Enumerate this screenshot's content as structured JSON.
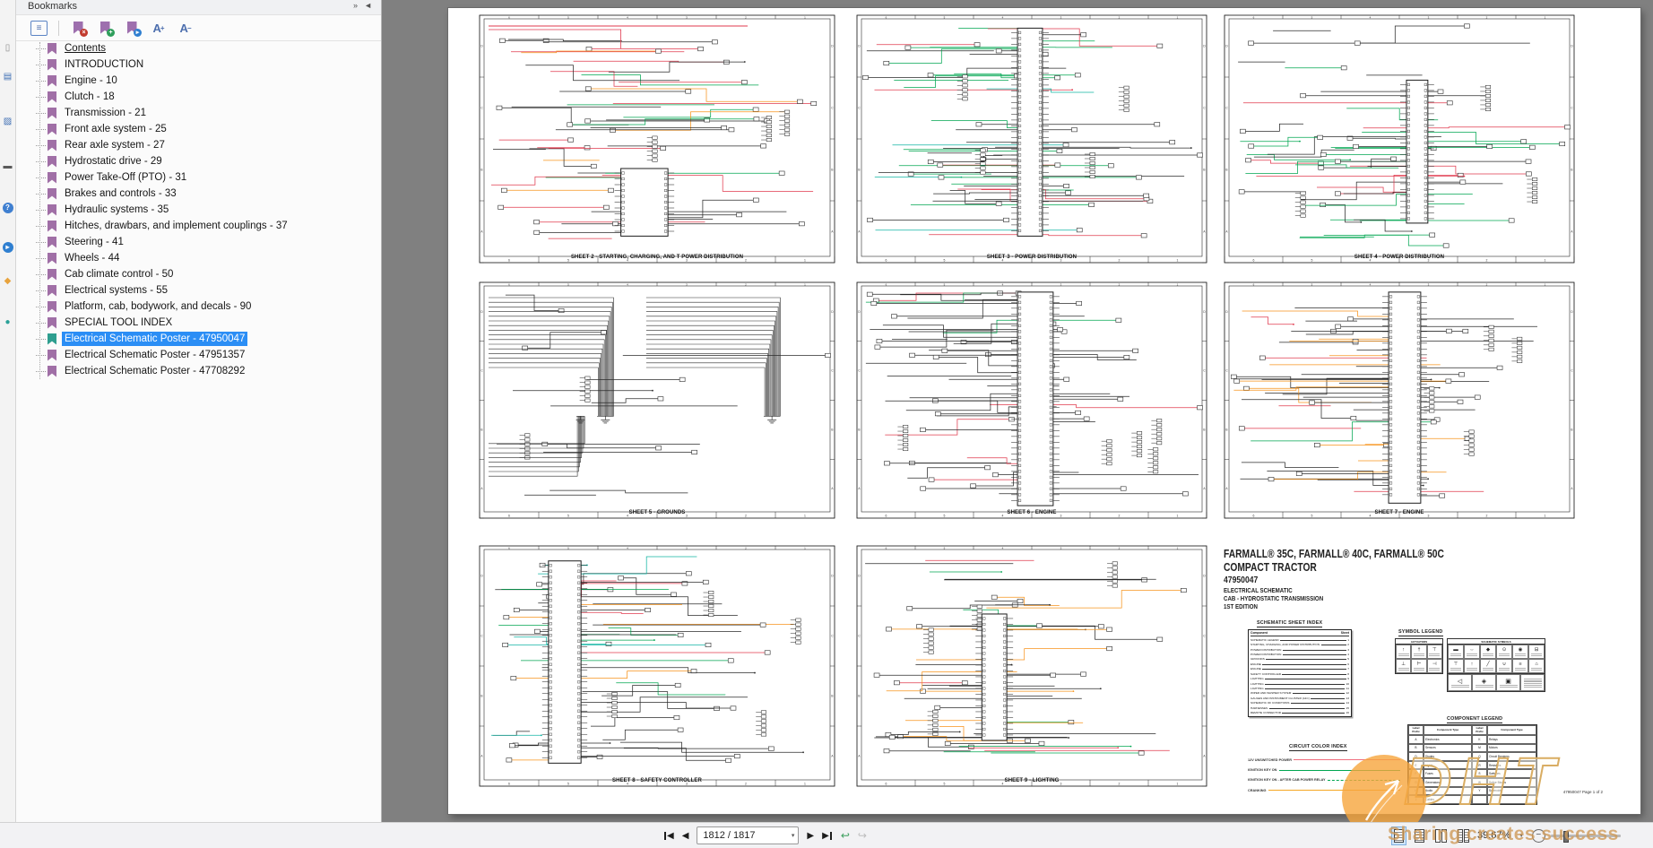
{
  "bookmarks_panel": {
    "title": "Bookmarks",
    "header_icons": [
      {
        "name": "expand-panels-icon",
        "glyph": "»"
      },
      {
        "name": "collapse-panel-icon",
        "glyph": "◄"
      }
    ],
    "toolbar_icons": [
      {
        "name": "bookmark-options-icon",
        "kind": "list",
        "glyph": "≡"
      },
      {
        "name": "bookmark-delete-icon",
        "kind": "flag",
        "badge": "#c23b2e",
        "glyph": "×"
      },
      {
        "name": "bookmark-add-icon",
        "kind": "flag",
        "badge": "#2e9e5b",
        "glyph": "+"
      },
      {
        "name": "bookmark-goto-icon",
        "kind": "flag",
        "badge": "#2f7fd0",
        "glyph": "▸"
      },
      {
        "name": "font-increase-icon",
        "kind": "A",
        "sup": "+"
      },
      {
        "name": "font-decrease-icon",
        "kind": "A",
        "sup": "−"
      }
    ],
    "items": [
      {
        "label": "Contents",
        "underline": true
      },
      {
        "label": "INTRODUCTION"
      },
      {
        "label": "Engine - 10"
      },
      {
        "label": "Clutch - 18"
      },
      {
        "label": "Transmission - 21"
      },
      {
        "label": "Front axle system - 25"
      },
      {
        "label": "Rear axle system - 27"
      },
      {
        "label": "Hydrostatic drive - 29"
      },
      {
        "label": "Power Take-Off (PTO) - 31"
      },
      {
        "label": "Brakes and controls - 33"
      },
      {
        "label": "Hydraulic systems - 35"
      },
      {
        "label": "Hitches, drawbars, and implement couplings - 37"
      },
      {
        "label": "Steering - 41"
      },
      {
        "label": "Wheels - 44"
      },
      {
        "label": "Cab climate control - 50"
      },
      {
        "label": "Electrical systems - 55"
      },
      {
        "label": "Platform, cab, bodywork, and decals - 90"
      },
      {
        "label": "SPECIAL TOOL INDEX"
      },
      {
        "label": "Electrical Schematic Poster - 47950047",
        "selected": true
      },
      {
        "label": "Electrical Schematic Poster - 47951357"
      },
      {
        "label": "Electrical Schematic Poster - 47708292"
      }
    ]
  },
  "left_rail_icons": [
    {
      "name": "pages-icon",
      "glyph": "▯",
      "color": "#8a8a8a"
    },
    {
      "name": "bookmarks-tab-icon",
      "glyph": "▤",
      "color": "#3f6fb4"
    },
    {
      "name": "layers-icon",
      "glyph": "▨",
      "color": "#3f6fb4"
    },
    {
      "name": "comments-icon",
      "glyph": "▬",
      "color": "#5a5a5a"
    },
    {
      "name": "help-icon",
      "glyph": "?",
      "color": "#ffffff",
      "bg": "#3f7fd0"
    },
    {
      "name": "info-icon",
      "glyph": "▸",
      "color": "#ffffff",
      "bg": "#2f7fd0"
    },
    {
      "name": "highlight-icon",
      "glyph": "◆",
      "color": "#e8a33d"
    },
    {
      "name": "comment-dot-icon",
      "glyph": "●",
      "color": "#2aa198"
    }
  ],
  "poster": {
    "sheets": [
      {
        "label": "SHEET 2 - STARTING, CHARGING, AND T POWER DISTRIBUTION"
      },
      {
        "label": "SHEET 3 - POWER DISTRIBUTION"
      },
      {
        "label": "SHEET 4 - POWER DISTRIBUTION"
      },
      {
        "label": "SHEET 5 - GROUNDS"
      },
      {
        "label": "SHEET 6 - ENGINE"
      },
      {
        "label": "SHEET 7 - ENGINE"
      },
      {
        "label": "SHEET 8 - SAFETY CONTROLLER"
      },
      {
        "label": "SHEET 9 - LIGHTING"
      }
    ],
    "title_block": {
      "line1": "FARMALL® 35C, FARMALL® 40C, FARMALL® 50C",
      "line2": "COMPACT TRACTOR",
      "line3": "47950047",
      "line4": "ELECTRICAL SCHEMATIC",
      "line5": "CAB - HYDROSTATIC TRANSMISSION",
      "line6": "1ST EDITION",
      "sheet_index": {
        "heading": "SCHEMATIC SHEET INDEX",
        "col1": "Component",
        "col2": "Sheet",
        "rows": [
          [
            "SCHEMATIC LEGEND",
            "1"
          ],
          [
            "STARTING, CHARGING, AND POWER DISTRIBUTION",
            "2"
          ],
          [
            "POWER DISTRIBUTION",
            "3"
          ],
          [
            "POWER DISTRIBUTION",
            "4"
          ],
          [
            "GROUNDS",
            "5"
          ],
          [
            "ENGINE",
            "6"
          ],
          [
            "ENGINE",
            "7"
          ],
          [
            "SAFETY CONTROLLER",
            "8"
          ],
          [
            "LIGHTING",
            "9"
          ],
          [
            "LIGHTING",
            "10"
          ],
          [
            "LIGHTING",
            "11"
          ],
          [
            "WIPER AND WASHER SYSTEM",
            "12"
          ],
          [
            "GAUGES AND INSTRUMENT CLUSTER (A1C)",
            "13"
          ],
          [
            "SCHEMATIC OF CONDITIONS",
            "14"
          ],
          [
            "HARNESSES",
            "15"
          ],
          [
            "REMOTE CONNECTOR",
            "16"
          ]
        ]
      },
      "symbol_legend": {
        "heading": "SYMBOL LEGEND",
        "actuators_title": "ACTUATORS",
        "schematic_title": "SCHEMATIC SYMBOLS",
        "actuator_glyphs": [
          "↑",
          "†",
          "⊤",
          "⊥",
          "⊢",
          "⊣"
        ],
        "schematic_glyphs": [
          "▬",
          "⇔",
          "◆",
          "⊙",
          "◉",
          "⊟",
          "⊤",
          "↑",
          "╱",
          "∪",
          "≡",
          "⌂"
        ],
        "big_glyphs": [
          "◁",
          "◈",
          "▣"
        ]
      },
      "color_index": {
        "heading": "CIRCUIT COLOR INDEX",
        "entries": [
          {
            "label": "12V UNSWITCHED POWER",
            "color": "#ef6e7e",
            "dashed": false
          },
          {
            "label": "IGNITION KEY ON",
            "color": "#00a651",
            "dashed": false
          },
          {
            "label": "IGNITION KEY ON - AFTER CAB POWER RELAY",
            "color": "#00a651",
            "dashed": true
          },
          {
            "label": "CRANKING",
            "color": "#f5a623",
            "dashed": false
          }
        ]
      },
      "component_legend": {
        "heading": "COMPONENT LEGEND",
        "col1": "Label Prefix",
        "col2": "Component Type",
        "left_rows": [
          [
            "A",
            "Electronics"
          ],
          [
            "B",
            "Sensors"
          ],
          [
            "D",
            "Diodes"
          ],
          [
            "E",
            "Lights"
          ],
          [
            "F",
            "Fuses"
          ],
          [
            "G",
            "Generators"
          ],
          [
            "H",
            "Audio"
          ],
          [
            "J",
            "Cables"
          ]
        ],
        "right_rows": [
          [
            "K",
            "Relays"
          ],
          [
            "M",
            "Motors"
          ],
          [
            "Q",
            "Circuit Breakers"
          ],
          [
            "R",
            "Resistors"
          ],
          [
            "S",
            "Switches"
          ],
          [
            "W",
            "Splice Blocks"
          ],
          [
            "Y",
            "Solenoids"
          ]
        ]
      },
      "footer": "47950047 Page 1 of 2"
    }
  },
  "statusbar": {
    "page_box": "1812 / 1817",
    "zoom_value": "39.67%"
  },
  "watermarks": {
    "slogan": "Sharing creates success",
    "brand": "DHT",
    "circle_color": "#f6a53c"
  }
}
